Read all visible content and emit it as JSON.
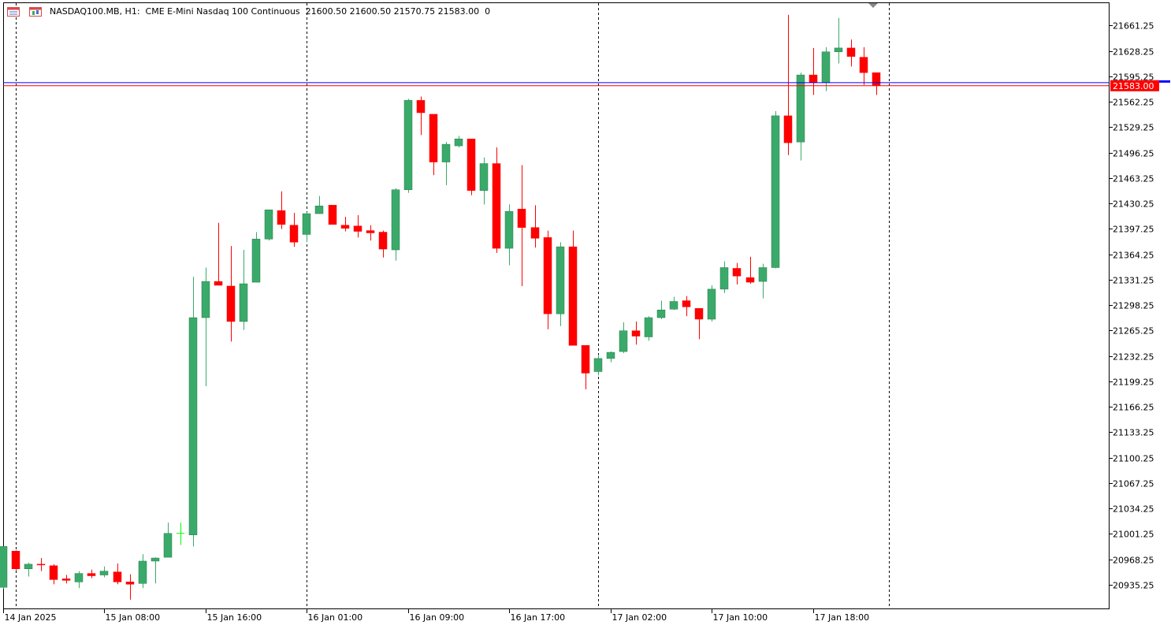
{
  "header": {
    "symbol": "NASDAQ100.MB",
    "timeframe": "H1:",
    "description": "CME E-Mini Nasdaq 100 Continuous",
    "ohlc": "21600.50 21600.50 21570.75 21583.00",
    "volume": "0"
  },
  "current_price": {
    "label": "21583.00",
    "value": 21583.0,
    "color": "#ff0000"
  },
  "ask_price": {
    "value": 21587.0,
    "color": "#0000ff"
  },
  "colors": {
    "bull": "#3aaa6a",
    "bear": "#ff0000",
    "doji": "#00ff00",
    "grid": "#000000",
    "axis_text": "#000000"
  },
  "icons": [
    "menu-icon",
    "chart-type-icon"
  ],
  "chart_data": {
    "type": "candlestick",
    "title": "",
    "xlabel": "",
    "ylabel": "",
    "ylim": [
      20900.0,
      21680.0
    ],
    "y_ticks": [
      21661.25,
      21628.25,
      21595.25,
      21562.25,
      21529.25,
      21496.25,
      21463.25,
      21430.25,
      21397.25,
      21364.25,
      21331.25,
      21298.25,
      21265.25,
      21232.25,
      21199.25,
      21166.25,
      21133.25,
      21100.25,
      21067.25,
      21034.25,
      21001.25,
      20968.25,
      20935.25
    ],
    "x_labels": [
      {
        "label": "14 Jan 2025",
        "index": 1
      },
      {
        "label": "15 Jan 08:00",
        "index": 9
      },
      {
        "label": "15 Jan 16:00",
        "index": 17
      },
      {
        "label": "16 Jan 01:00",
        "index": 25
      },
      {
        "label": "16 Jan 09:00",
        "index": 33
      },
      {
        "label": "16 Jan 17:00",
        "index": 41
      },
      {
        "label": "17 Jan 02:00",
        "index": 49
      },
      {
        "label": "17 Jan 10:00",
        "index": 57
      },
      {
        "label": "17 Jan 18:00",
        "index": 65
      }
    ],
    "day_separators": [
      1,
      24,
      47,
      70
    ],
    "candles": [
      {
        "o": 20932,
        "h": 20985,
        "c": 20985,
        "l": 20930
      },
      {
        "o": 20979,
        "h": 20980,
        "c": 20956,
        "l": 20954
      },
      {
        "o": 20956,
        "h": 20964,
        "c": 20962,
        "l": 20946
      },
      {
        "o": 20962,
        "h": 20970,
        "c": 20961,
        "l": 20953
      },
      {
        "o": 20960,
        "h": 20962,
        "c": 20942,
        "l": 20936
      },
      {
        "o": 20943,
        "h": 20948,
        "c": 20941,
        "l": 20937
      },
      {
        "o": 20939,
        "h": 20953,
        "c": 20950,
        "l": 20931
      },
      {
        "o": 20950,
        "h": 20955,
        "c": 20947,
        "l": 20944
      },
      {
        "o": 20948,
        "h": 20959,
        "c": 20953,
        "l": 20945
      },
      {
        "o": 20952,
        "h": 20963,
        "c": 20939,
        "l": 20936
      },
      {
        "o": 20939,
        "h": 20949,
        "c": 20936,
        "l": 20916
      },
      {
        "o": 20937,
        "h": 20975,
        "c": 20966,
        "l": 20931
      },
      {
        "o": 20966,
        "h": 20971,
        "c": 20970,
        "l": 20937
      },
      {
        "o": 20971,
        "h": 21016,
        "c": 21002,
        "l": 20971
      },
      {
        "o": 21002,
        "h": 21016,
        "c": 21002,
        "l": 20987
      },
      {
        "o": 21000,
        "h": 21335,
        "c": 21282,
        "l": 20985
      },
      {
        "o": 21282,
        "h": 21347,
        "c": 21329,
        "l": 21193
      },
      {
        "o": 21329,
        "h": 21405,
        "c": 21324,
        "l": 21324
      },
      {
        "o": 21323,
        "h": 21375,
        "c": 21277,
        "l": 21251
      },
      {
        "o": 21277,
        "h": 21370,
        "c": 21326,
        "l": 21266
      },
      {
        "o": 21328,
        "h": 21393,
        "c": 21384,
        "l": 21328
      },
      {
        "o": 21384,
        "h": 21422,
        "c": 21422,
        "l": 21382
      },
      {
        "o": 21421,
        "h": 21446,
        "c": 21403,
        "l": 21397
      },
      {
        "o": 21402,
        "h": 21418,
        "c": 21380,
        "l": 21374
      },
      {
        "o": 21390,
        "h": 21419,
        "c": 21417,
        "l": 21380
      },
      {
        "o": 21417,
        "h": 21440,
        "c": 21427,
        "l": 21420
      },
      {
        "o": 21428,
        "h": 21428,
        "c": 21403,
        "l": 21403
      },
      {
        "o": 21402,
        "h": 21413,
        "c": 21398,
        "l": 21394
      },
      {
        "o": 21401,
        "h": 21415,
        "c": 21394,
        "l": 21386
      },
      {
        "o": 21395,
        "h": 21402,
        "c": 21392,
        "l": 21382
      },
      {
        "o": 21393,
        "h": 21395,
        "c": 21371,
        "l": 21360
      },
      {
        "o": 21370,
        "h": 21450,
        "c": 21448,
        "l": 21356
      },
      {
        "o": 21448,
        "h": 21566,
        "c": 21564,
        "l": 21444
      },
      {
        "o": 21564,
        "h": 21569,
        "c": 21548,
        "l": 21519
      },
      {
        "o": 21546,
        "h": 21545,
        "c": 21484,
        "l": 21467
      },
      {
        "o": 21484,
        "h": 21510,
        "c": 21507,
        "l": 21454
      },
      {
        "o": 21505,
        "h": 21518,
        "c": 21514,
        "l": 21503
      },
      {
        "o": 21514,
        "h": 21512,
        "c": 21447,
        "l": 21441
      },
      {
        "o": 21447,
        "h": 21490,
        "c": 21482,
        "l": 21429
      },
      {
        "o": 21482,
        "h": 21503,
        "c": 21372,
        "l": 21366
      },
      {
        "o": 21372,
        "h": 21429,
        "c": 21420,
        "l": 21350
      },
      {
        "o": 21423,
        "h": 21480,
        "c": 21399,
        "l": 21323
      },
      {
        "o": 21399,
        "h": 21428,
        "c": 21385,
        "l": 21373
      },
      {
        "o": 21386,
        "h": 21395,
        "c": 21287,
        "l": 21267
      },
      {
        "o": 21287,
        "h": 21380,
        "c": 21374,
        "l": 21271
      },
      {
        "o": 21374,
        "h": 21395,
        "c": 21246,
        "l": 21246
      },
      {
        "o": 21246,
        "h": 21243,
        "c": 21210,
        "l": 21189
      },
      {
        "o": 21212,
        "h": 21234,
        "c": 21229,
        "l": 21207
      },
      {
        "o": 21229,
        "h": 21238,
        "c": 21237,
        "l": 21224
      },
      {
        "o": 21238,
        "h": 21276,
        "c": 21265,
        "l": 21236
      },
      {
        "o": 21265,
        "h": 21277,
        "c": 21258,
        "l": 21247
      },
      {
        "o": 21257,
        "h": 21284,
        "c": 21282,
        "l": 21252
      },
      {
        "o": 21282,
        "h": 21304,
        "c": 21292,
        "l": 21280
      },
      {
        "o": 21293,
        "h": 21309,
        "c": 21303,
        "l": 21292
      },
      {
        "o": 21304,
        "h": 21310,
        "c": 21296,
        "l": 21284
      },
      {
        "o": 21294,
        "h": 21294,
        "c": 21280,
        "l": 21254
      },
      {
        "o": 21280,
        "h": 21324,
        "c": 21319,
        "l": 21277
      },
      {
        "o": 21319,
        "h": 21355,
        "c": 21347,
        "l": 21314
      },
      {
        "o": 21346,
        "h": 21353,
        "c": 21336,
        "l": 21325
      },
      {
        "o": 21334,
        "h": 21361,
        "c": 21328,
        "l": 21326
      },
      {
        "o": 21329,
        "h": 21352,
        "c": 21347,
        "l": 21307
      },
      {
        "o": 21347,
        "h": 21550,
        "c": 21544,
        "l": 21346
      },
      {
        "o": 21544,
        "h": 21675,
        "c": 21509,
        "l": 21493
      },
      {
        "o": 21510,
        "h": 21600,
        "c": 21597,
        "l": 21486
      },
      {
        "o": 21597,
        "h": 21632,
        "c": 21587,
        "l": 21571
      },
      {
        "o": 21587,
        "h": 21633,
        "c": 21627,
        "l": 21576
      },
      {
        "o": 21627,
        "h": 21671,
        "c": 21632,
        "l": 21612
      },
      {
        "o": 21632,
        "h": 21643,
        "c": 21621,
        "l": 21608
      },
      {
        "o": 21620,
        "h": 21633,
        "c": 21600,
        "l": 21584
      },
      {
        "o": 21600,
        "h": 21600,
        "c": 21583,
        "l": 21571
      }
    ]
  },
  "axis": {
    "ticks": [
      "21661.25",
      "21628.25",
      "21595.25",
      "21562.25",
      "21529.25",
      "21496.25",
      "21463.25",
      "21430.25",
      "21397.25",
      "21364.25",
      "21331.25",
      "21298.25",
      "21265.25",
      "21232.25",
      "21199.25",
      "21166.25",
      "21133.25",
      "21100.25",
      "21067.25",
      "21034.25",
      "21001.25",
      "20968.25",
      "20935.25"
    ]
  }
}
